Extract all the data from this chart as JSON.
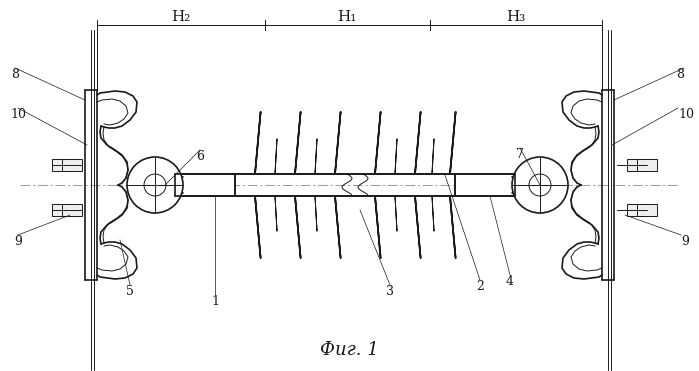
{
  "title": "Фиг. 1",
  "bg_color": "#ffffff",
  "line_color": "#1a1a1a",
  "figsize": [
    6.99,
    3.71
  ],
  "dpi": 100,
  "labels": {
    "H1": "H₁",
    "H2": "H₂",
    "H3": "H₃"
  }
}
